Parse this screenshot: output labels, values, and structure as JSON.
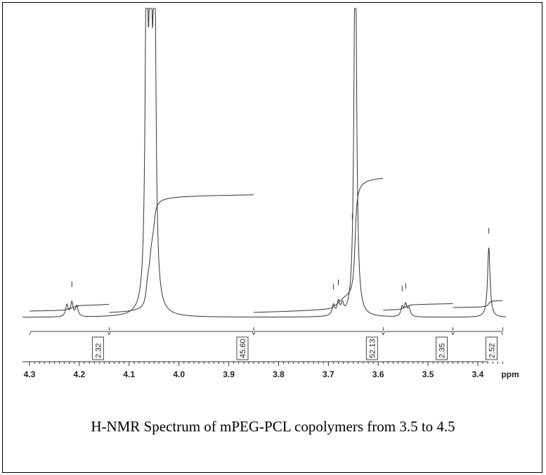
{
  "caption": "H-NMR Spectrum of mPEG-PCL copolymers from 3.5 to 4.5",
  "chart_data": {
    "type": "line",
    "title": "",
    "xlabel": "ppm",
    "xlim": [
      4.3,
      3.35
    ],
    "x_reversed": true,
    "x_ticks": [
      4.3,
      4.2,
      4.1,
      4.0,
      3.9,
      3.8,
      3.7,
      3.6,
      3.5,
      3.4
    ],
    "x_tick_labels": [
      "4.3",
      "4.2",
      "4.1",
      "4.0",
      "3.9",
      "3.8",
      "3.7",
      "3.6",
      "3.5",
      "3.4"
    ],
    "peaks": [
      {
        "ppm": 4.225,
        "height": 0.05
      },
      {
        "ppm": 4.215,
        "height": 0.06
      },
      {
        "ppm": 4.205,
        "height": 0.045
      },
      {
        "ppm": 4.065,
        "height": 1.6
      },
      {
        "ppm": 4.057,
        "height": 1.6
      },
      {
        "ppm": 4.049,
        "height": 1.6
      },
      {
        "ppm": 3.69,
        "height": 0.045
      },
      {
        "ppm": 3.68,
        "height": 0.055
      },
      {
        "ppm": 3.672,
        "height": 0.04
      },
      {
        "ppm": 3.646,
        "height": 1.8
      },
      {
        "ppm": 3.552,
        "height": 0.04
      },
      {
        "ppm": 3.545,
        "height": 0.05
      },
      {
        "ppm": 3.538,
        "height": 0.035
      },
      {
        "ppm": 3.378,
        "height": 0.3
      }
    ],
    "integrals": [
      {
        "from": 4.3,
        "to": 4.14,
        "value": 2.32,
        "label": "2.32"
      },
      {
        "from": 4.14,
        "to": 3.85,
        "value": 45.6,
        "label": "45.60"
      },
      {
        "from": 3.85,
        "to": 3.59,
        "value": 52.13,
        "label": "52.13"
      },
      {
        "from": 3.59,
        "to": 3.45,
        "value": 2.35,
        "label": "2.35"
      },
      {
        "from": 3.45,
        "to": 3.35,
        "value": 2.52,
        "label": "2.52"
      }
    ]
  }
}
